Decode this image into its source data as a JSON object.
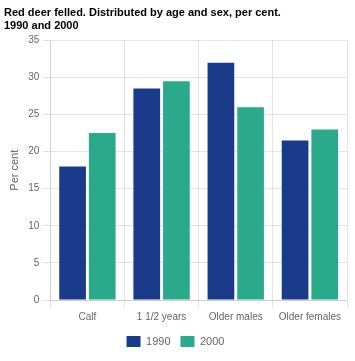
{
  "chart_data": {
    "type": "bar",
    "title": "Red deer felled. Distributed by age and sex, per cent.\n1990 and 2000",
    "ylabel": "Per cent",
    "categories": [
      "Calf",
      "1 1/2 years",
      "Older males",
      "Older females"
    ],
    "series": [
      {
        "name": "1990",
        "color": "#1a3a8a",
        "values": [
          18.0,
          28.5,
          32.0,
          21.5
        ]
      },
      {
        "name": "2000",
        "color": "#2aaa8a",
        "values": [
          22.5,
          29.5,
          26.0,
          23.0
        ]
      }
    ],
    "ylim": [
      0,
      35
    ],
    "yticks": [
      0,
      5,
      10,
      15,
      20,
      25,
      30,
      35
    ],
    "grid": true,
    "legend": "bottom"
  }
}
